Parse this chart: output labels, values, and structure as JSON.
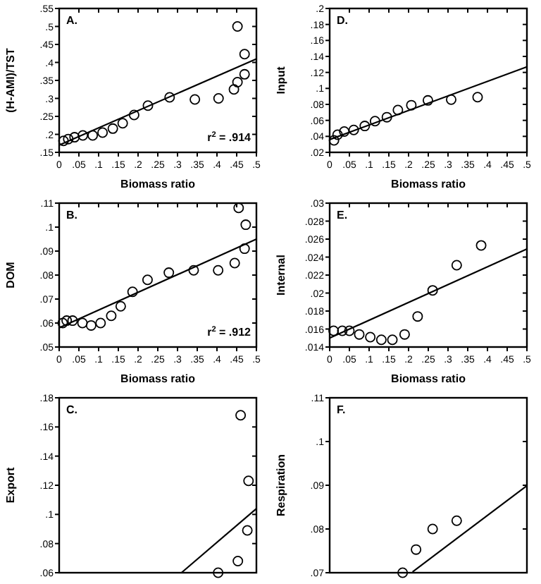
{
  "chart_data": [
    {
      "type": "scatter",
      "ylabel": "(H-AMI)/TST",
      "xlabel": "Biomass ratio",
      "annotations": [
        "A.",
        "r$^{2}$ = .914"
      ],
      "xlim": [
        0,
        0.5
      ],
      "ylim": [
        0.15,
        0.55
      ],
      "xticks": [
        {
          "value": 0,
          "label": "0"
        },
        {
          "value": 0.05,
          "label": ".05"
        },
        {
          "value": 0.1,
          "label": ".1"
        },
        {
          "value": 0.15,
          "label": ".15"
        },
        {
          "value": 0.2,
          "label": ".2"
        },
        {
          "value": 0.25,
          "label": ".25"
        },
        {
          "value": 0.3,
          "label": ".3"
        },
        {
          "value": 0.35,
          "label": ".35"
        },
        {
          "value": 0.4,
          "label": ".4"
        },
        {
          "value": 0.45,
          "label": ".45"
        },
        {
          "value": 0.5,
          "label": ".5"
        }
      ],
      "yticks": [
        {
          "value": 0.15,
          "label": ".15"
        },
        {
          "value": 0.2,
          "label": ".2"
        },
        {
          "value": 0.25,
          "label": ".25"
        },
        {
          "value": 0.3,
          "label": ".3"
        },
        {
          "value": 0.35,
          "label": ".35"
        },
        {
          "value": 0.4,
          "label": ".4"
        },
        {
          "value": 0.45,
          "label": ".45"
        },
        {
          "value": 0.5,
          "label": ".5"
        },
        {
          "value": 0.55,
          "label": ".55"
        }
      ],
      "series": [
        {
          "color": "#000000",
          "marker": "circle",
          "x": [
            0.011,
            0.023,
            0.039,
            0.06,
            0.085,
            0.11,
            0.136,
            0.161,
            0.19,
            0.225,
            0.28,
            0.344,
            0.404,
            0.443,
            0.452,
            0.47,
            0.47,
            0.452
          ],
          "values": [
            0.182,
            0.187,
            0.192,
            0.197,
            0.197,
            0.205,
            0.216,
            0.231,
            0.254,
            0.28,
            0.303,
            0.297,
            0.3,
            0.325,
            0.345,
            0.367,
            0.423,
            0.5
          ]
        },
        {
          "type": "line",
          "marker": "none",
          "color": "#000000",
          "x": [
            0,
            0.5
          ],
          "values": [
            0.17,
            0.41
          ]
        }
      ]
    },
    {
      "type": "scatter",
      "ylabel": "Input",
      "xlabel": "Biomass ratio",
      "annotations": [
        "D."
      ],
      "xlim": [
        0,
        0.5
      ],
      "ylim": [
        0.02,
        0.2
      ],
      "xticks": [
        {
          "value": 0,
          "label": "0"
        },
        {
          "value": 0.05,
          "label": ".05"
        },
        {
          "value": 0.1,
          "label": ".1"
        },
        {
          "value": 0.15,
          "label": ".15"
        },
        {
          "value": 0.2,
          "label": ".2"
        },
        {
          "value": 0.25,
          "label": ".25"
        },
        {
          "value": 0.3,
          "label": ".3"
        },
        {
          "value": 0.35,
          "label": ".35"
        },
        {
          "value": 0.4,
          "label": ".4"
        },
        {
          "value": 0.45,
          "label": ".45"
        },
        {
          "value": 0.5,
          "label": ".5"
        }
      ],
      "yticks": [
        {
          "value": 0.02,
          "label": ".02"
        },
        {
          "value": 0.04,
          "label": ".04"
        },
        {
          "value": 0.06,
          "label": ".06"
        },
        {
          "value": 0.08,
          "label": ".08"
        },
        {
          "value": 0.1,
          "label": ".1"
        },
        {
          "value": 0.12,
          "label": ".12"
        },
        {
          "value": 0.14,
          "label": ".14"
        },
        {
          "value": 0.16,
          "label": ".16"
        },
        {
          "value": 0.18,
          "label": ".18"
        },
        {
          "value": 0.2,
          "label": ".2"
        }
      ],
      "series": [
        {
          "color": "#000000",
          "marker": "circle",
          "x": [
            0.011,
            0.02,
            0.037,
            0.061,
            0.089,
            0.115,
            0.145,
            0.173,
            0.207,
            0.249,
            0.308,
            0.375
          ],
          "values": [
            0.035,
            0.042,
            0.046,
            0.048,
            0.053,
            0.059,
            0.064,
            0.073,
            0.079,
            0.085,
            0.086,
            0.089
          ]
        },
        {
          "type": "line",
          "marker": "none",
          "color": "#000000",
          "x": [
            0,
            0.5
          ],
          "values": [
            0.036,
            0.127
          ]
        }
      ]
    },
    {
      "type": "scatter",
      "ylabel": "DOM",
      "xlabel": "Biomass ratio",
      "annotations": [
        "B.",
        "r$^{2}$ = .912"
      ],
      "xlim": [
        0,
        0.5
      ],
      "ylim": [
        0.05,
        0.11
      ],
      "xticks": [
        {
          "value": 0,
          "label": "0"
        },
        {
          "value": 0.05,
          "label": ".05"
        },
        {
          "value": 0.1,
          "label": ".1"
        },
        {
          "value": 0.15,
          "label": ".15"
        },
        {
          "value": 0.2,
          "label": ".2"
        },
        {
          "value": 0.25,
          "label": ".25"
        },
        {
          "value": 0.3,
          "label": ".3"
        },
        {
          "value": 0.35,
          "label": ".35"
        },
        {
          "value": 0.4,
          "label": ".4"
        },
        {
          "value": 0.45,
          "label": ".45"
        },
        {
          "value": 0.5,
          "label": ".5"
        }
      ],
      "yticks": [
        {
          "value": 0.05,
          "label": ".05"
        },
        {
          "value": 0.06,
          "label": ".06"
        },
        {
          "value": 0.07,
          "label": ".07"
        },
        {
          "value": 0.08,
          "label": ".08"
        },
        {
          "value": 0.09,
          "label": ".09"
        },
        {
          "value": 0.1,
          "label": ".1"
        },
        {
          "value": 0.11,
          "label": ".11"
        }
      ],
      "series": [
        {
          "color": "#000000",
          "marker": "circle",
          "x": [
            0.009,
            0.019,
            0.034,
            0.059,
            0.081,
            0.105,
            0.132,
            0.156,
            0.186,
            0.224,
            0.278,
            0.341,
            0.403,
            0.445,
            0.47,
            0.473,
            0.455
          ],
          "values": [
            0.06,
            0.061,
            0.061,
            0.06,
            0.059,
            0.06,
            0.063,
            0.067,
            0.073,
            0.078,
            0.081,
            0.082,
            0.082,
            0.085,
            0.091,
            0.101,
            0.108
          ]
        },
        {
          "type": "line",
          "marker": "none",
          "color": "#000000",
          "x": [
            0,
            0.5
          ],
          "values": [
            0.058,
            0.095
          ]
        }
      ]
    },
    {
      "type": "scatter",
      "ylabel": "Internal",
      "xlabel": "Biomass ratio",
      "annotations": [
        "E."
      ],
      "xlim": [
        0,
        0.5
      ],
      "ylim": [
        0.014,
        0.03
      ],
      "xticks": [
        {
          "value": 0,
          "label": "0"
        },
        {
          "value": 0.05,
          "label": ".05"
        },
        {
          "value": 0.1,
          "label": ".1"
        },
        {
          "value": 0.15,
          "label": ".15"
        },
        {
          "value": 0.2,
          "label": ".2"
        },
        {
          "value": 0.25,
          "label": ".25"
        },
        {
          "value": 0.3,
          "label": ".3"
        },
        {
          "value": 0.35,
          "label": ".35"
        },
        {
          "value": 0.4,
          "label": ".4"
        },
        {
          "value": 0.45,
          "label": ".45"
        },
        {
          "value": 0.5,
          "label": ".5"
        }
      ],
      "yticks": [
        {
          "value": 0.014,
          "label": ".014"
        },
        {
          "value": 0.016,
          "label": ".016"
        },
        {
          "value": 0.018,
          "label": ".018"
        },
        {
          "value": 0.02,
          "label": ".02"
        },
        {
          "value": 0.022,
          "label": ".022"
        },
        {
          "value": 0.024,
          "label": ".024"
        },
        {
          "value": 0.026,
          "label": ".026"
        },
        {
          "value": 0.028,
          "label": ".028"
        },
        {
          "value": 0.03,
          "label": ".03"
        }
      ],
      "series": [
        {
          "color": "#000000",
          "marker": "circle",
          "x": [
            0.01,
            0.032,
            0.05,
            0.075,
            0.103,
            0.131,
            0.159,
            0.19,
            0.223,
            0.261,
            0.322,
            0.384
          ],
          "values": [
            0.0158,
            0.0158,
            0.0158,
            0.0154,
            0.0151,
            0.0148,
            0.0148,
            0.0154,
            0.0174,
            0.0203,
            0.0231,
            0.0253
          ]
        },
        {
          "type": "line",
          "marker": "none",
          "color": "#000000",
          "x": [
            0,
            0.5
          ],
          "values": [
            0.015,
            0.0249
          ]
        }
      ]
    },
    {
      "type": "scatter",
      "ylabel": "Export",
      "annotations": [
        "C."
      ],
      "tick_labels": "y",
      "xlim": [
        0,
        0.5
      ],
      "ylim": [
        0.06,
        0.18
      ],
      "yticks": [
        {
          "value": 0.06,
          "label": ".06"
        },
        {
          "value": 0.08,
          "label": ".08"
        },
        {
          "value": 0.1,
          "label": ".1"
        },
        {
          "value": 0.12,
          "label": ".12"
        },
        {
          "value": 0.14,
          "label": ".14"
        },
        {
          "value": 0.16,
          "label": ".16"
        },
        {
          "value": 0.18,
          "label": ".18"
        }
      ],
      "series": [
        {
          "color": "#000000",
          "marker": "circle",
          "x": [
            0.403,
            0.453,
            0.477,
            0.48,
            0.46
          ],
          "values": [
            0.06,
            0.068,
            0.089,
            0.123,
            0.168
          ]
        },
        {
          "type": "line",
          "marker": "none",
          "color": "#000000",
          "x": [
            0.31,
            0.5
          ],
          "values": [
            0.06,
            0.104
          ]
        }
      ]
    },
    {
      "type": "scatter",
      "ylabel": "Respiration",
      "annotations": [
        "F."
      ],
      "tick_labels": "y",
      "xlim": [
        0,
        0.5
      ],
      "ylim": [
        0.07,
        0.11
      ],
      "yticks": [
        {
          "value": 0.07,
          "label": ".07"
        },
        {
          "value": 0.08,
          "label": ".08"
        },
        {
          "value": 0.09,
          "label": ".09"
        },
        {
          "value": 0.1,
          "label": ".1"
        },
        {
          "value": 0.11,
          "label": ".11"
        }
      ],
      "series": [
        {
          "color": "#000000",
          "marker": "circle",
          "x": [
            0.185,
            0.219,
            0.261,
            0.322
          ],
          "values": [
            0.07,
            0.0753,
            0.08,
            0.0819
          ]
        },
        {
          "type": "line",
          "marker": "none",
          "color": "#000000",
          "x": [
            0.21,
            0.5
          ],
          "values": [
            0.0702,
            0.0899
          ]
        }
      ]
    }
  ]
}
